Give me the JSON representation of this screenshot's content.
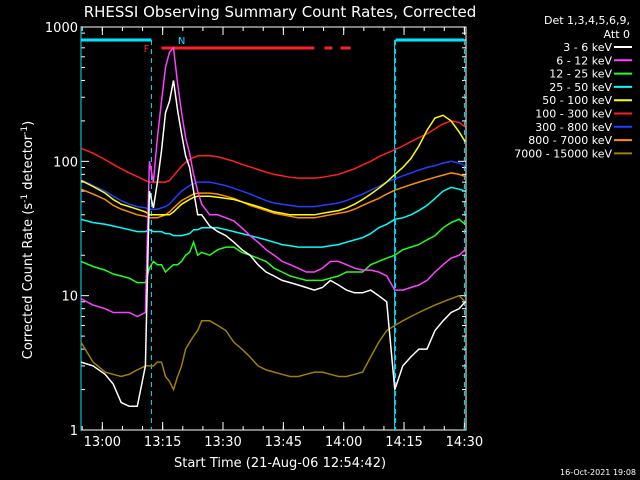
{
  "chart_data": {
    "type": "line",
    "title": "RHESSI Observing Summary Count Rates, Corrected",
    "xlabel": "Start Time (21-Aug-06 12:54:42)",
    "ylabel": "Corrected Count Rate (s⁻¹ detector⁻¹)",
    "ylabel_main": "Corrected Count Rate (s",
    "ylabel_sup1": "-1",
    "ylabel_mid": " detector",
    "ylabel_sup2": "-1",
    "ylabel_end": ")",
    "y_scale": "log",
    "ylim": [
      1,
      1000
    ],
    "xlim": [
      0,
      5.97
    ],
    "x_ticks": [
      "13:00",
      "13:15",
      "13:30",
      "13:45",
      "14:00",
      "14:15",
      "14:30"
    ],
    "x_tick_values": [
      0.3,
      1.3,
      2.3,
      3.3,
      4.3,
      5.3,
      6.3
    ],
    "y_ticks": [
      "1",
      "10",
      "100",
      "1000"
    ],
    "y_tick_values": [
      1,
      10,
      100,
      1000
    ],
    "legend_header": "Det 1,3,4,5,6,9,",
    "legend_header2": "Att 0",
    "legend_placement": "right",
    "timestamp": "16-Oct-2021 19:08",
    "flags": {
      "night_bar_color": "#00e5ff",
      "flare_bar_color": "#ff2020",
      "f_label": "F",
      "n_label": "N"
    },
    "times_min": [
      0,
      3,
      6,
      8,
      10,
      12,
      14,
      16,
      17,
      18,
      19,
      20,
      21,
      22,
      23,
      24,
      25,
      26,
      27,
      28,
      29,
      30,
      32,
      34,
      36,
      38,
      40,
      42,
      44,
      46,
      48,
      50,
      52,
      54,
      56,
      58,
      60,
      62,
      64,
      66,
      68,
      70,
      72,
      74,
      76,
      78,
      80,
      82,
      84,
      86,
      88,
      90,
      92,
      94,
      95.5
    ],
    "series": [
      {
        "name": "3 - 6 keV",
        "color": "#ffffff",
        "values": [
          3.2,
          3,
          2.6,
          2.2,
          1.6,
          1.5,
          1.5,
          3,
          60,
          45,
          70,
          120,
          230,
          280,
          400,
          240,
          160,
          110,
          90,
          60,
          40,
          40,
          33,
          30,
          28,
          25,
          22,
          20,
          17,
          15,
          14,
          13,
          12.5,
          12,
          11.5,
          11,
          11.5,
          13,
          12,
          11,
          10.5,
          10.5,
          11,
          10,
          9,
          2,
          3,
          3.5,
          4,
          4,
          5.5,
          6.5,
          7.5,
          8,
          9
        ]
      },
      {
        "name": "6 - 12 keV",
        "color": "#ff40ff",
        "values": [
          9.5,
          8.5,
          8,
          7.5,
          7.5,
          7.5,
          7,
          7.5,
          100,
          70,
          150,
          280,
          500,
          650,
          700,
          380,
          230,
          150,
          115,
          80,
          60,
          48,
          40,
          40,
          38,
          36,
          32,
          28,
          25,
          22,
          20,
          18,
          17,
          16,
          15,
          15,
          16,
          18,
          18,
          17,
          16,
          15.5,
          15.5,
          15,
          14,
          11,
          11,
          11.5,
          12,
          13,
          15,
          17,
          19,
          20,
          22
        ]
      },
      {
        "name": "12 - 25 keV",
        "color": "#20ff20",
        "values": [
          18,
          16.5,
          15.5,
          14.5,
          14,
          13.5,
          12.5,
          12.5,
          16,
          18,
          17,
          17,
          15,
          16,
          17,
          17,
          18,
          20,
          21,
          25,
          20,
          21,
          20,
          22,
          23,
          23,
          21,
          20,
          19,
          18,
          16,
          15,
          14,
          13.5,
          13,
          13,
          13,
          13.5,
          14,
          15,
          15,
          15,
          17,
          18,
          19,
          20,
          22,
          23,
          24,
          26,
          28,
          32,
          35,
          37,
          34
        ]
      },
      {
        "name": "25 - 50 keV",
        "color": "#00ffff",
        "values": [
          37,
          35,
          34,
          33,
          32,
          31,
          30,
          30,
          31,
          30,
          30,
          30,
          29,
          29,
          28,
          28,
          28,
          28.5,
          29,
          31,
          31,
          32,
          32,
          32,
          31,
          30,
          29,
          28,
          27,
          26,
          25,
          24,
          23.5,
          23,
          23,
          23,
          23,
          23.5,
          24,
          25,
          26,
          27,
          29,
          32,
          34,
          37,
          38,
          40,
          43,
          47,
          53,
          60,
          64,
          62,
          60
        ]
      },
      {
        "name": "50 - 100 keV",
        "color": "#ffff00",
        "values": [
          72,
          65,
          58,
          52,
          48,
          46,
          44,
          42,
          40,
          40,
          40,
          40,
          40,
          40,
          42,
          45,
          48,
          50,
          52,
          54,
          55,
          55,
          55,
          54,
          53,
          52,
          50,
          48,
          46,
          44,
          42,
          41,
          40,
          40,
          40,
          40,
          41,
          42,
          43,
          45,
          48,
          52,
          57,
          63,
          70,
          80,
          90,
          105,
          130,
          170,
          210,
          220,
          200,
          165,
          140
        ]
      },
      {
        "name": "100 - 300 keV",
        "color": "#ff2020",
        "values": [
          125,
          115,
          103,
          95,
          88,
          82,
          77,
          72,
          70,
          70,
          70,
          70,
          70,
          72,
          78,
          85,
          92,
          98,
          103,
          107,
          110,
          110,
          110,
          108,
          104,
          100,
          95,
          91,
          87,
          83,
          80,
          78,
          76,
          75,
          75,
          75,
          76,
          78,
          80,
          84,
          88,
          94,
          100,
          108,
          115,
          122,
          130,
          140,
          150,
          160,
          175,
          190,
          200,
          195,
          180
        ]
      },
      {
        "name": "300 - 800 keV",
        "color": "#2040ff",
        "values": [
          73,
          66,
          60,
          55,
          51,
          48,
          46,
          45,
          44,
          44,
          44,
          45,
          46,
          48,
          52,
          56,
          60,
          63,
          66,
          68,
          70,
          70,
          70,
          68,
          66,
          63,
          60,
          57,
          54,
          51,
          49,
          48,
          47,
          46,
          46,
          46,
          47,
          48,
          49,
          51,
          54,
          57,
          61,
          65,
          70,
          74,
          78,
          82,
          86,
          90,
          93,
          97,
          100,
          97,
          93
        ]
      },
      {
        "name": "800 - 7000 keV",
        "color": "#ff9000",
        "values": [
          62,
          57,
          52,
          47,
          44,
          42,
          40,
          39,
          38,
          38,
          38,
          39,
          40,
          42,
          45,
          48,
          51,
          53,
          55,
          57,
          58,
          58,
          58,
          57,
          55,
          53,
          50,
          47,
          45,
          43,
          41,
          40,
          39,
          38,
          38,
          38,
          39,
          40,
          41,
          42,
          44,
          47,
          50,
          53,
          57,
          61,
          64,
          67,
          70,
          73,
          76,
          79,
          82,
          80,
          77
        ]
      },
      {
        "name": "7000 - 15000 keV",
        "color": "#a08000",
        "values": [
          4.5,
          3.2,
          2.7,
          2.6,
          2.5,
          2.6,
          2.8,
          3,
          3,
          3,
          3.2,
          3.2,
          2.5,
          2.3,
          2,
          2.5,
          3,
          4,
          4.5,
          5,
          5.5,
          6.5,
          6.5,
          6,
          5.5,
          4.5,
          4,
          3.5,
          3,
          2.8,
          2.7,
          2.6,
          2.5,
          2.5,
          2.6,
          2.7,
          2.7,
          2.6,
          2.5,
          2.5,
          2.6,
          2.7,
          3.5,
          4.5,
          5.5,
          6,
          6.5,
          7,
          7.5,
          8,
          8.5,
          9,
          9.5,
          10,
          9
        ]
      }
    ]
  }
}
